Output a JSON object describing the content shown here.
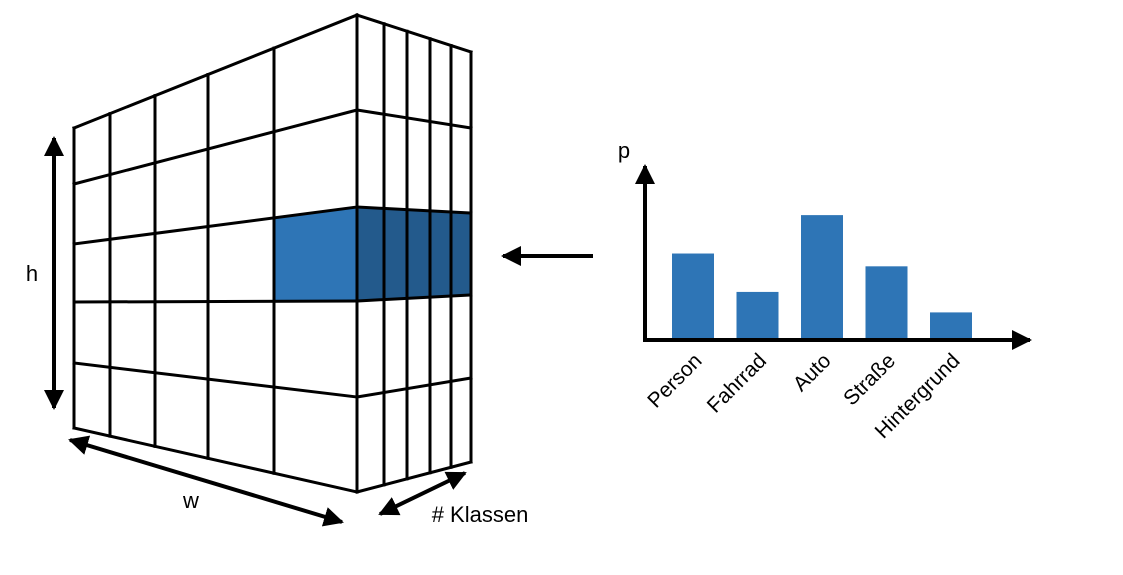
{
  "tensor": {
    "height_label": "h",
    "width_label": "w",
    "depth_label": "# Klassen"
  },
  "chart": {
    "y_label": "p"
  },
  "chart_data": {
    "type": "bar",
    "categories": [
      "Person",
      "Fahrrad",
      "Auto",
      "Straße",
      "Hintergrund"
    ],
    "values": [
      0.66,
      0.36,
      0.96,
      0.56,
      0.2
    ],
    "xlabel": "",
    "ylabel": "p",
    "ylim": [
      0,
      1.25
    ],
    "grid": false
  },
  "colors": {
    "bar": "#2e75b6",
    "highlight_front": "#2e75b6",
    "highlight_side": "#235a8c",
    "line": "#000000"
  }
}
